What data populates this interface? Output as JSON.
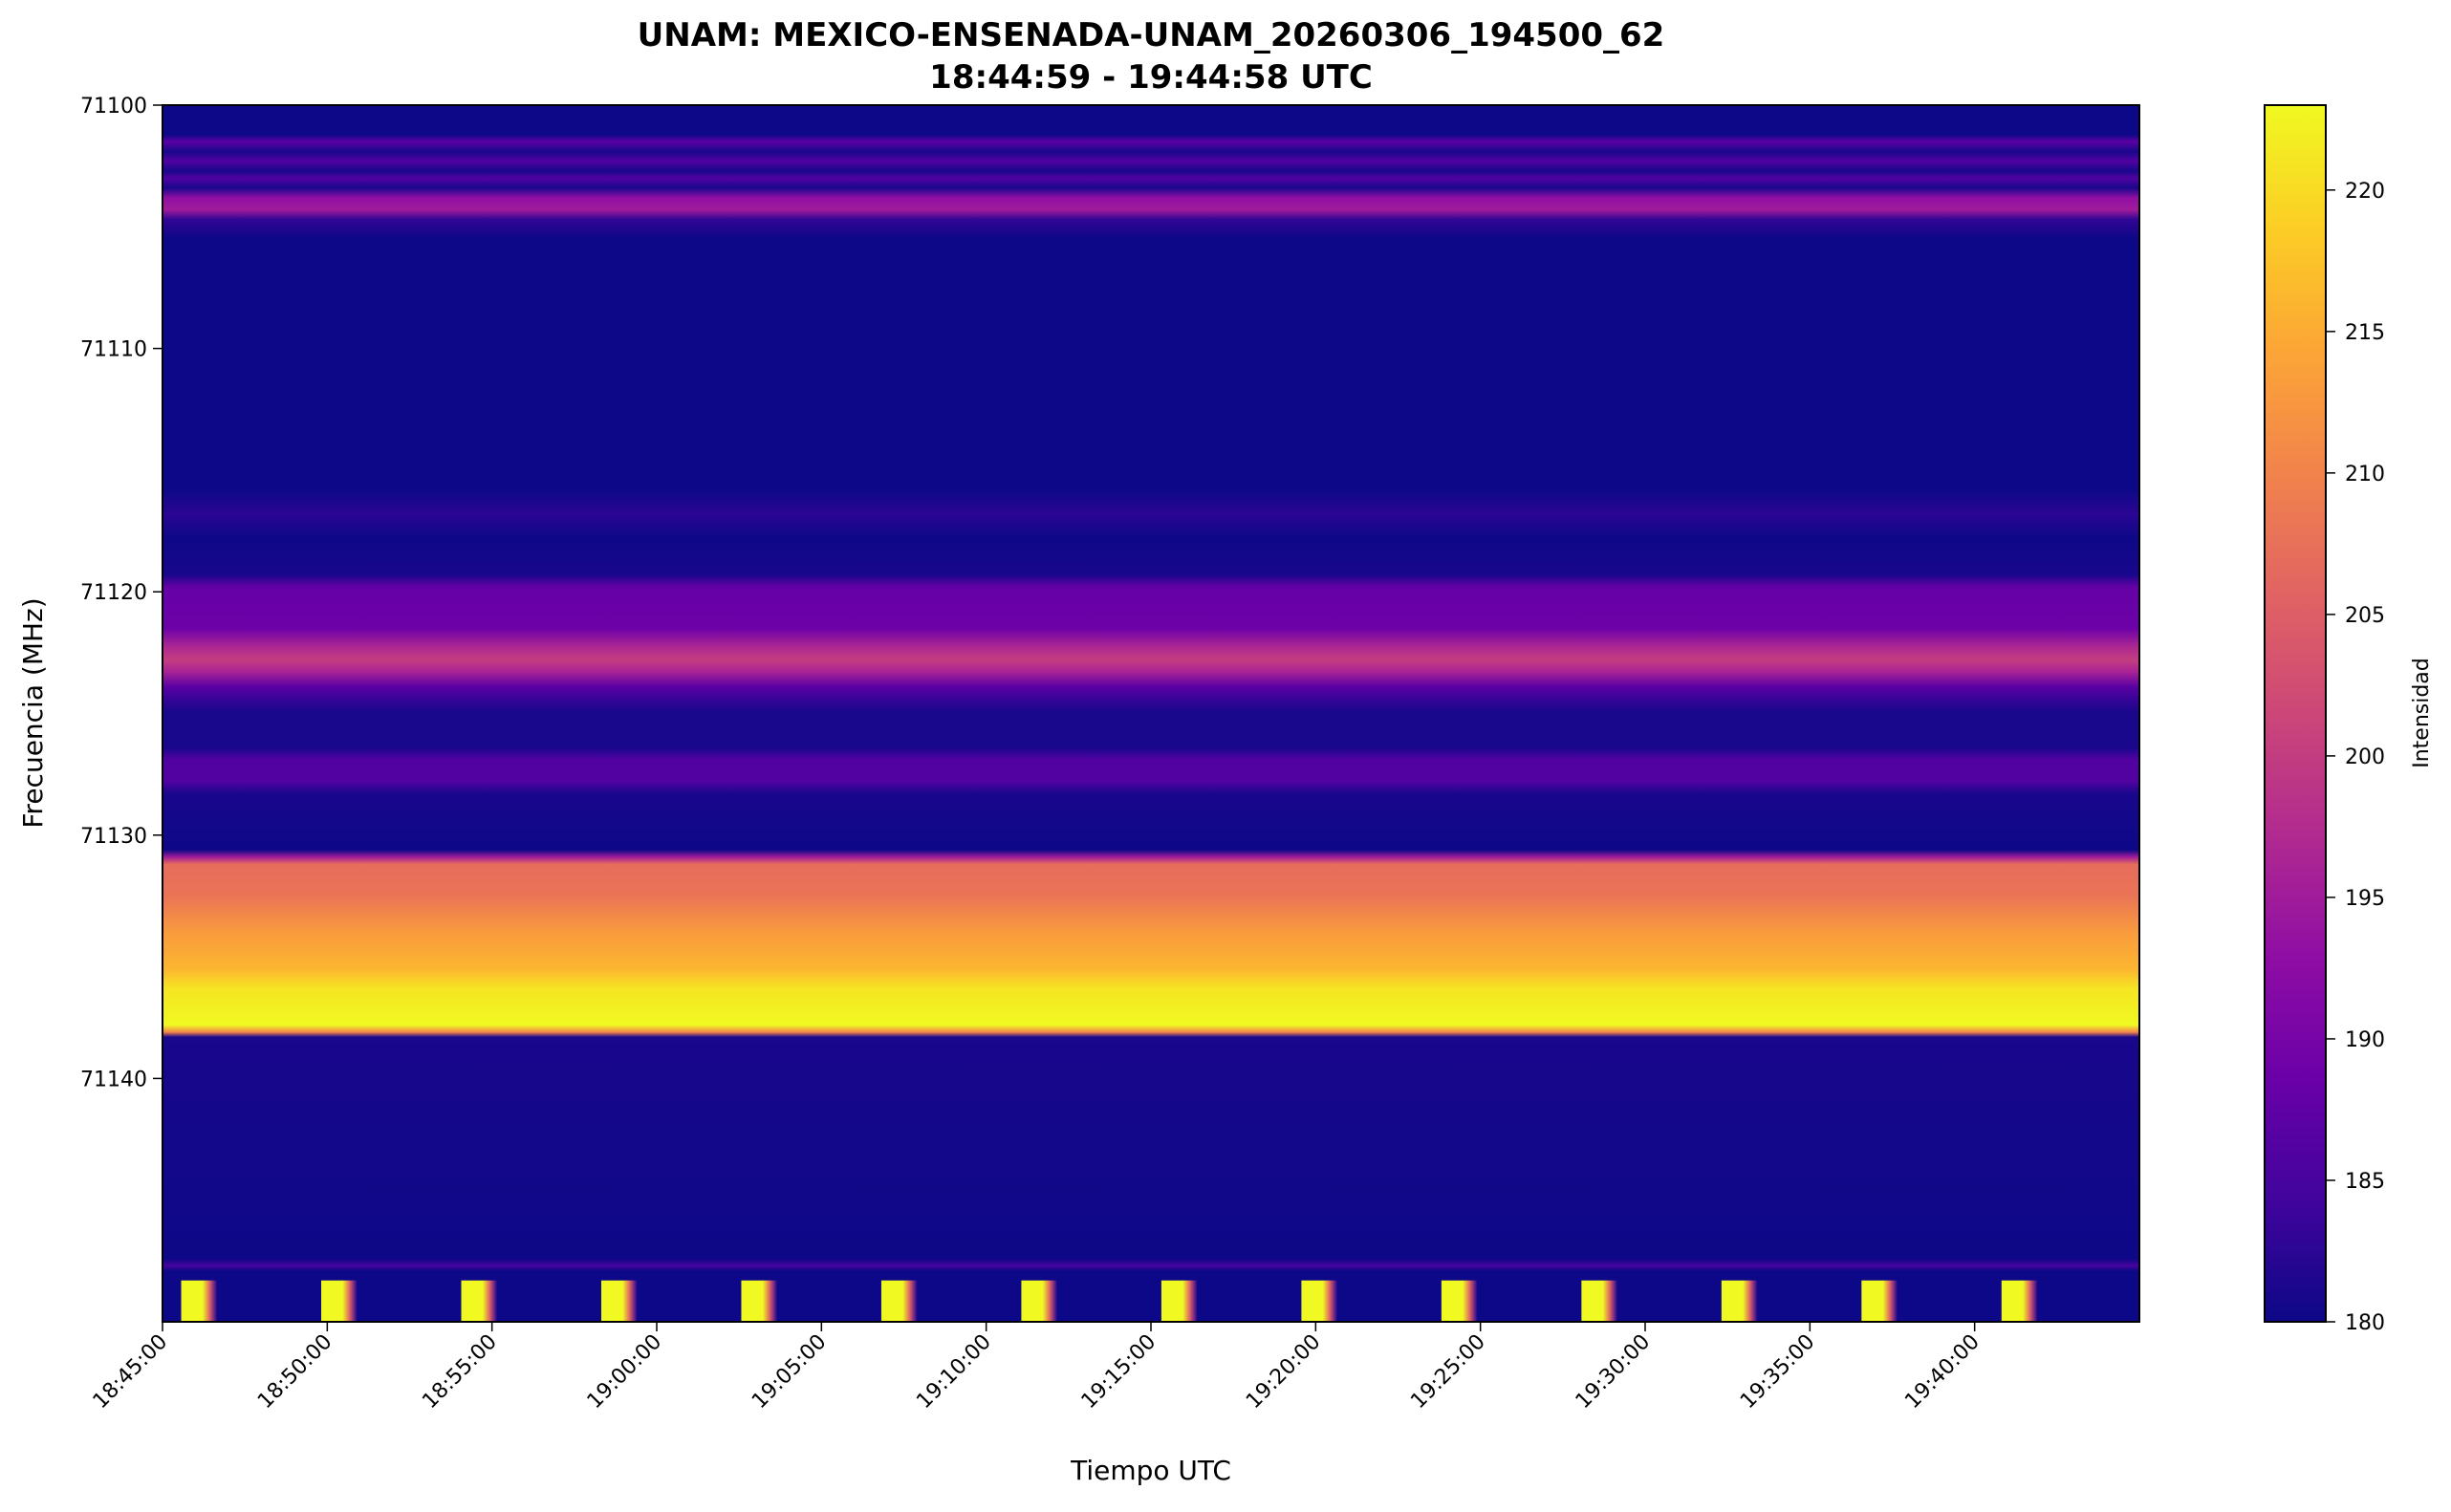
{
  "chart_data": {
    "type": "heatmap",
    "title": "UNAM: MEXICO-ENSENADA-UNAM_20260306_194500_62",
    "subtitle": "18:44:59 - 19:44:58 UTC",
    "xlabel": "Tiempo UTC",
    "ylabel": "Frecuencia (MHz)",
    "colorbar_label": "Intensidad",
    "colormap": "plasma",
    "x_range": [
      "18:45:00",
      "19:45:00"
    ],
    "x_ticks": [
      "18:45:00",
      "18:50:00",
      "18:55:00",
      "19:00:00",
      "19:05:00",
      "19:10:00",
      "19:15:00",
      "19:20:00",
      "19:25:00",
      "19:30:00",
      "19:35:00",
      "19:40:00"
    ],
    "y_range": [
      71100,
      71150
    ],
    "y_inverted": true,
    "y_ticks": [
      "71100",
      "71110",
      "71120",
      "71130",
      "71140"
    ],
    "color_range": [
      180,
      223
    ],
    "colorbar_ticks": [
      "180",
      "185",
      "190",
      "195",
      "200",
      "205",
      "210",
      "215",
      "220"
    ],
    "frequency_profile": [
      [
        71100,
        180
      ],
      [
        71101.2,
        180
      ],
      [
        71101.5,
        187
      ],
      [
        71101.9,
        181
      ],
      [
        71102.3,
        186
      ],
      [
        71102.7,
        181
      ],
      [
        71103.0,
        186
      ],
      [
        71103.4,
        181
      ],
      [
        71103.8,
        193
      ],
      [
        71104.3,
        195
      ],
      [
        71104.7,
        183
      ],
      [
        71105.5,
        180
      ],
      [
        71115.8,
        180
      ],
      [
        71116.8,
        182.5
      ],
      [
        71117.8,
        180
      ],
      [
        71119.3,
        181
      ],
      [
        71119.8,
        188
      ],
      [
        71121.5,
        189
      ],
      [
        71122.3,
        197
      ],
      [
        71122.8,
        200
      ],
      [
        71123.3,
        196
      ],
      [
        71123.9,
        187
      ],
      [
        71124.5,
        183
      ],
      [
        71125.0,
        181
      ],
      [
        71126.4,
        181
      ],
      [
        71126.9,
        186
      ],
      [
        71127.8,
        186
      ],
      [
        71128.3,
        181
      ],
      [
        71130.6,
        180
      ],
      [
        71130.9,
        195
      ],
      [
        71131.2,
        207
      ],
      [
        71132.5,
        208
      ],
      [
        71134.0,
        213
      ],
      [
        71135.5,
        216
      ],
      [
        71136.3,
        221
      ],
      [
        71137.8,
        223
      ],
      [
        71138.1,
        210
      ],
      [
        71138.3,
        181
      ],
      [
        71147.4,
        180
      ],
      [
        71147.7,
        185
      ],
      [
        71147.9,
        180
      ],
      [
        71150,
        180
      ]
    ],
    "pulses": {
      "freq_range": [
        71148.3,
        71150
      ],
      "intensity": 223,
      "duration_s": 65,
      "starts": [
        "18:45:34",
        "18:49:49",
        "18:54:04",
        "18:58:19",
        "19:02:34",
        "19:06:49",
        "19:11:04",
        "19:15:19",
        "19:19:34",
        "19:23:49",
        "19:28:04",
        "19:32:19",
        "19:36:34",
        "19:40:49"
      ]
    }
  }
}
